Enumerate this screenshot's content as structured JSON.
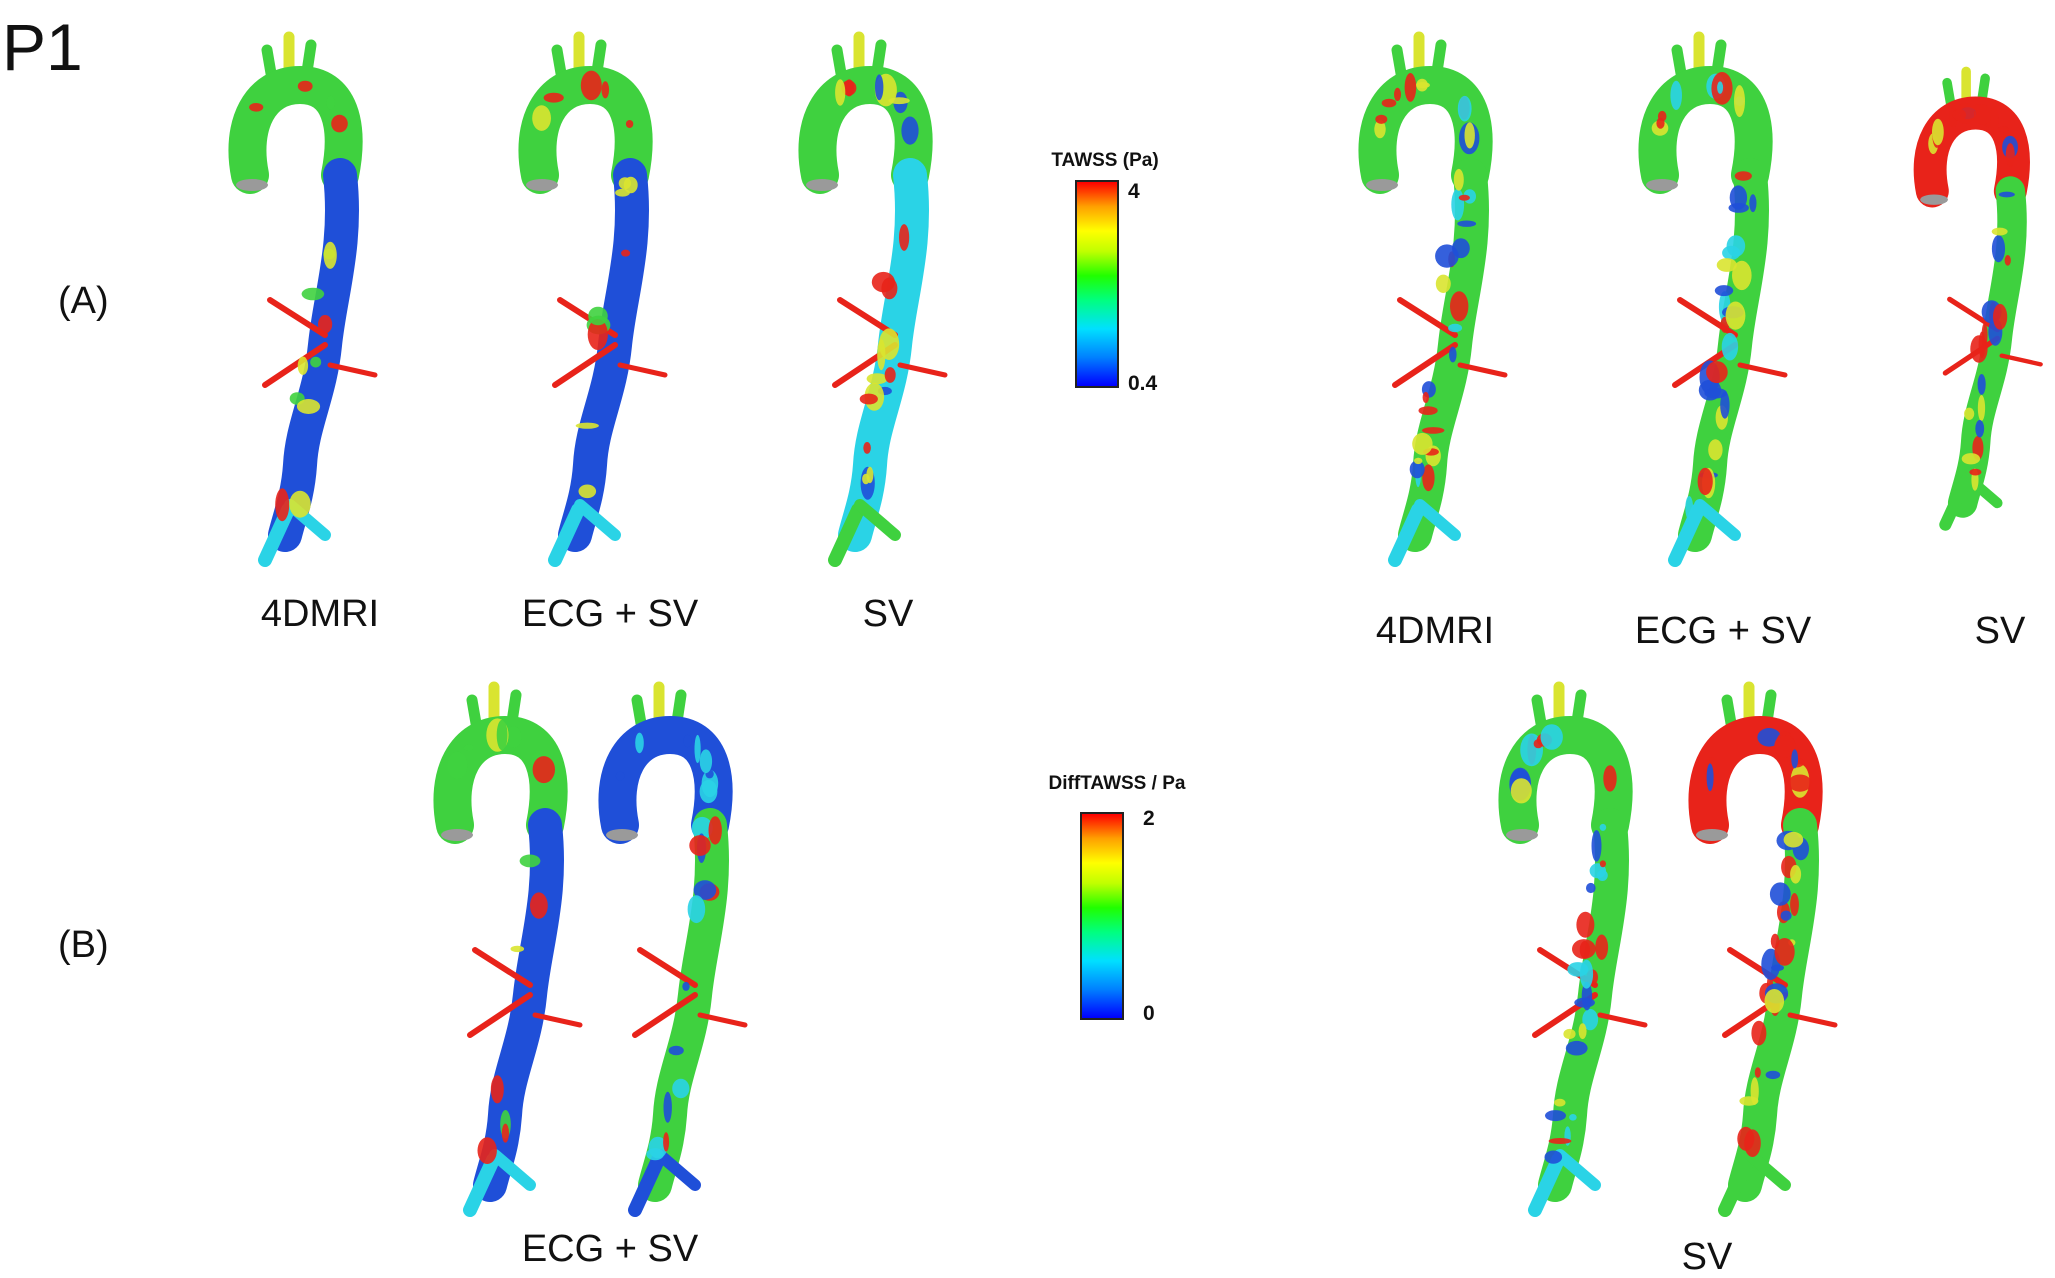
{
  "figure": {
    "title": "P1",
    "row_labels": [
      "(A)",
      "(B)"
    ]
  },
  "row_a": {
    "left_captions": [
      "4DMRI",
      "ECG + SV",
      "SV"
    ],
    "right_captions": [
      "4DMRI",
      "ECG + SV",
      "SV"
    ]
  },
  "row_b": {
    "left_caption": "ECG + SV",
    "right_caption": "SV"
  },
  "legend_tawss": {
    "title": "TAWSS (Pa)",
    "max_label": "4",
    "min_label": "0.4",
    "colormap": [
      "#0000ff",
      "#00e0ff",
      "#20ff00",
      "#ffff00",
      "#ff0000"
    ]
  },
  "legend_diff": {
    "title": "DiffTAWSS  / Pa",
    "max_label": "2",
    "min_label": "0",
    "colormap": [
      "#0000ff",
      "#00e0ff",
      "#20ff00",
      "#ffff00",
      "#ff0000"
    ]
  },
  "colors": {
    "blue": "#1f4fd8",
    "cyan": "#2ad3e6",
    "green": "#3fd13f",
    "yellow": "#d9e430",
    "red": "#e8231a",
    "cap": "#9a9a9a"
  }
}
